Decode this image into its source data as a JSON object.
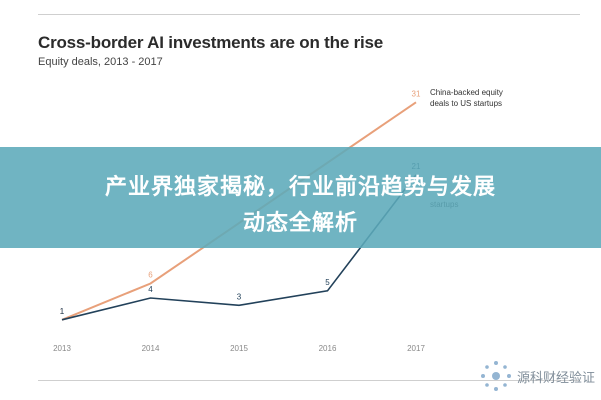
{
  "chart_data": {
    "type": "line",
    "title": "Cross-border AI investments are on the rise",
    "subtitle": "Equity deals, 2013 - 2017",
    "categories": [
      "2013",
      "2014",
      "2015",
      "2016",
      "2017"
    ],
    "ylim": [
      0,
      32
    ],
    "grid": false,
    "series": [
      {
        "name": "China-backed equity deals to US startups",
        "values": [
          1,
          6,
          null,
          null,
          31
        ],
        "color": "#e8a07a"
      },
      {
        "name": "startups",
        "values": [
          1,
          4,
          3,
          5,
          21
        ],
        "color": "#22415a"
      }
    ]
  },
  "series_labels": {
    "orange_line1": "China-backed equity",
    "orange_line2": "deals to US startups",
    "dark_fragment": "startups"
  },
  "banner": {
    "line1": "产业界独家揭秘，行业前沿趋势与发展",
    "line2": "动态全解析"
  },
  "watermark": {
    "name": "源科财经验证"
  },
  "colors": {
    "orange_series": "#e8a07a",
    "dark_series": "#22415a",
    "banner_bg": "#5caaba"
  }
}
